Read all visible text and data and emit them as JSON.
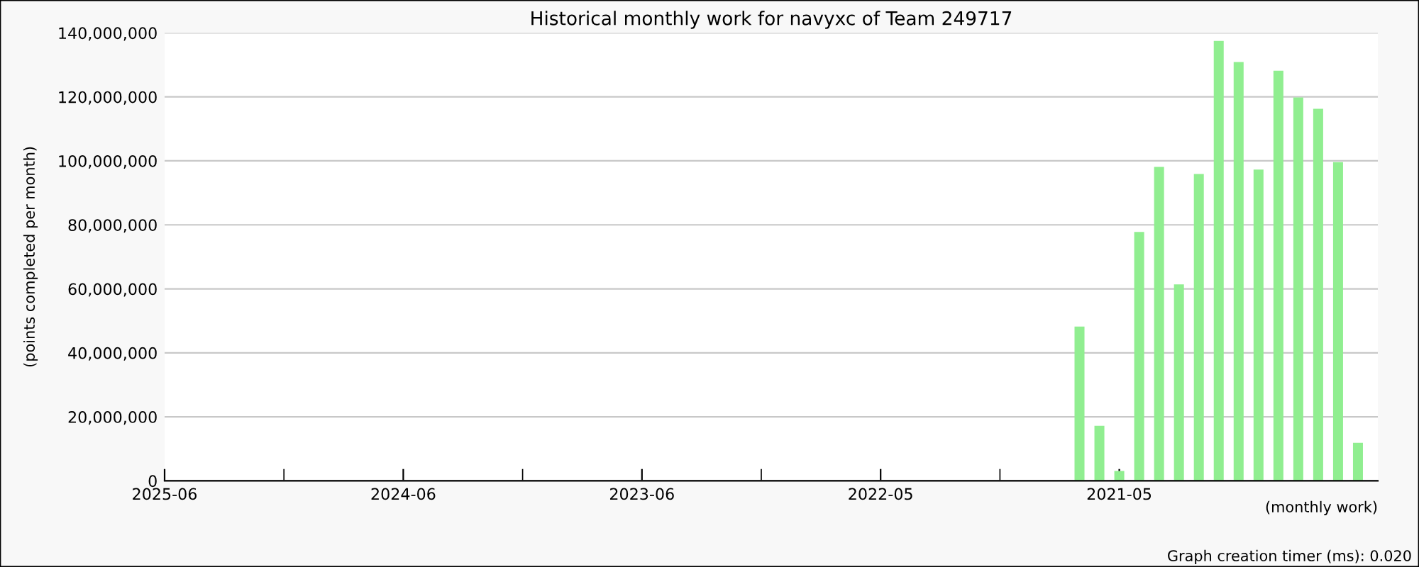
{
  "chart_data": {
    "type": "bar",
    "title": "Historical monthly work for navyxc of Team 249717",
    "ylabel": "(points completed per month)",
    "xlabel": "(monthly work)",
    "annotations": [
      "Graph creation timer (ms): 0.020"
    ],
    "categories": [
      "2025-06",
      null,
      null,
      null,
      null,
      null,
      null,
      null,
      null,
      null,
      null,
      null,
      "2024-06",
      null,
      null,
      null,
      null,
      null,
      null,
      null,
      null,
      null,
      null,
      null,
      "2023-06",
      null,
      null,
      null,
      null,
      null,
      null,
      null,
      null,
      null,
      null,
      null,
      "2022-05",
      null,
      null,
      null,
      null,
      null,
      null,
      null,
      null,
      null,
      null,
      null,
      "2021-05",
      null,
      null,
      null,
      null,
      null,
      null,
      null,
      null,
      null,
      null,
      null,
      null
    ],
    "values": [
      null,
      null,
      null,
      null,
      null,
      null,
      null,
      null,
      null,
      null,
      null,
      null,
      null,
      null,
      null,
      null,
      null,
      null,
      null,
      null,
      null,
      null,
      null,
      null,
      null,
      null,
      null,
      null,
      null,
      null,
      null,
      null,
      null,
      null,
      null,
      null,
      null,
      null,
      null,
      null,
      null,
      null,
      null,
      null,
      null,
      null,
      48200000,
      17200000,
      3100000,
      77800000,
      98100000,
      61400000,
      95900000,
      137500000,
      130900000,
      97300000,
      128200000,
      119800000,
      116300000,
      99600000,
      11900000
    ],
    "color": "#90ee90",
    "ylim": [
      0,
      140000000
    ],
    "yticks": [
      {
        "value": 0,
        "label": "0"
      },
      {
        "value": 20000000,
        "label": "20,000,000"
      },
      {
        "value": 40000000,
        "label": "40,000,000"
      },
      {
        "value": 60000000,
        "label": "60,000,000"
      },
      {
        "value": 80000000,
        "label": "80,000,000"
      },
      {
        "value": 100000000,
        "label": "100,000,000"
      },
      {
        "value": 120000000,
        "label": "120,000,000"
      },
      {
        "value": 140000000,
        "label": "140,000,000"
      }
    ],
    "grid": "y"
  }
}
